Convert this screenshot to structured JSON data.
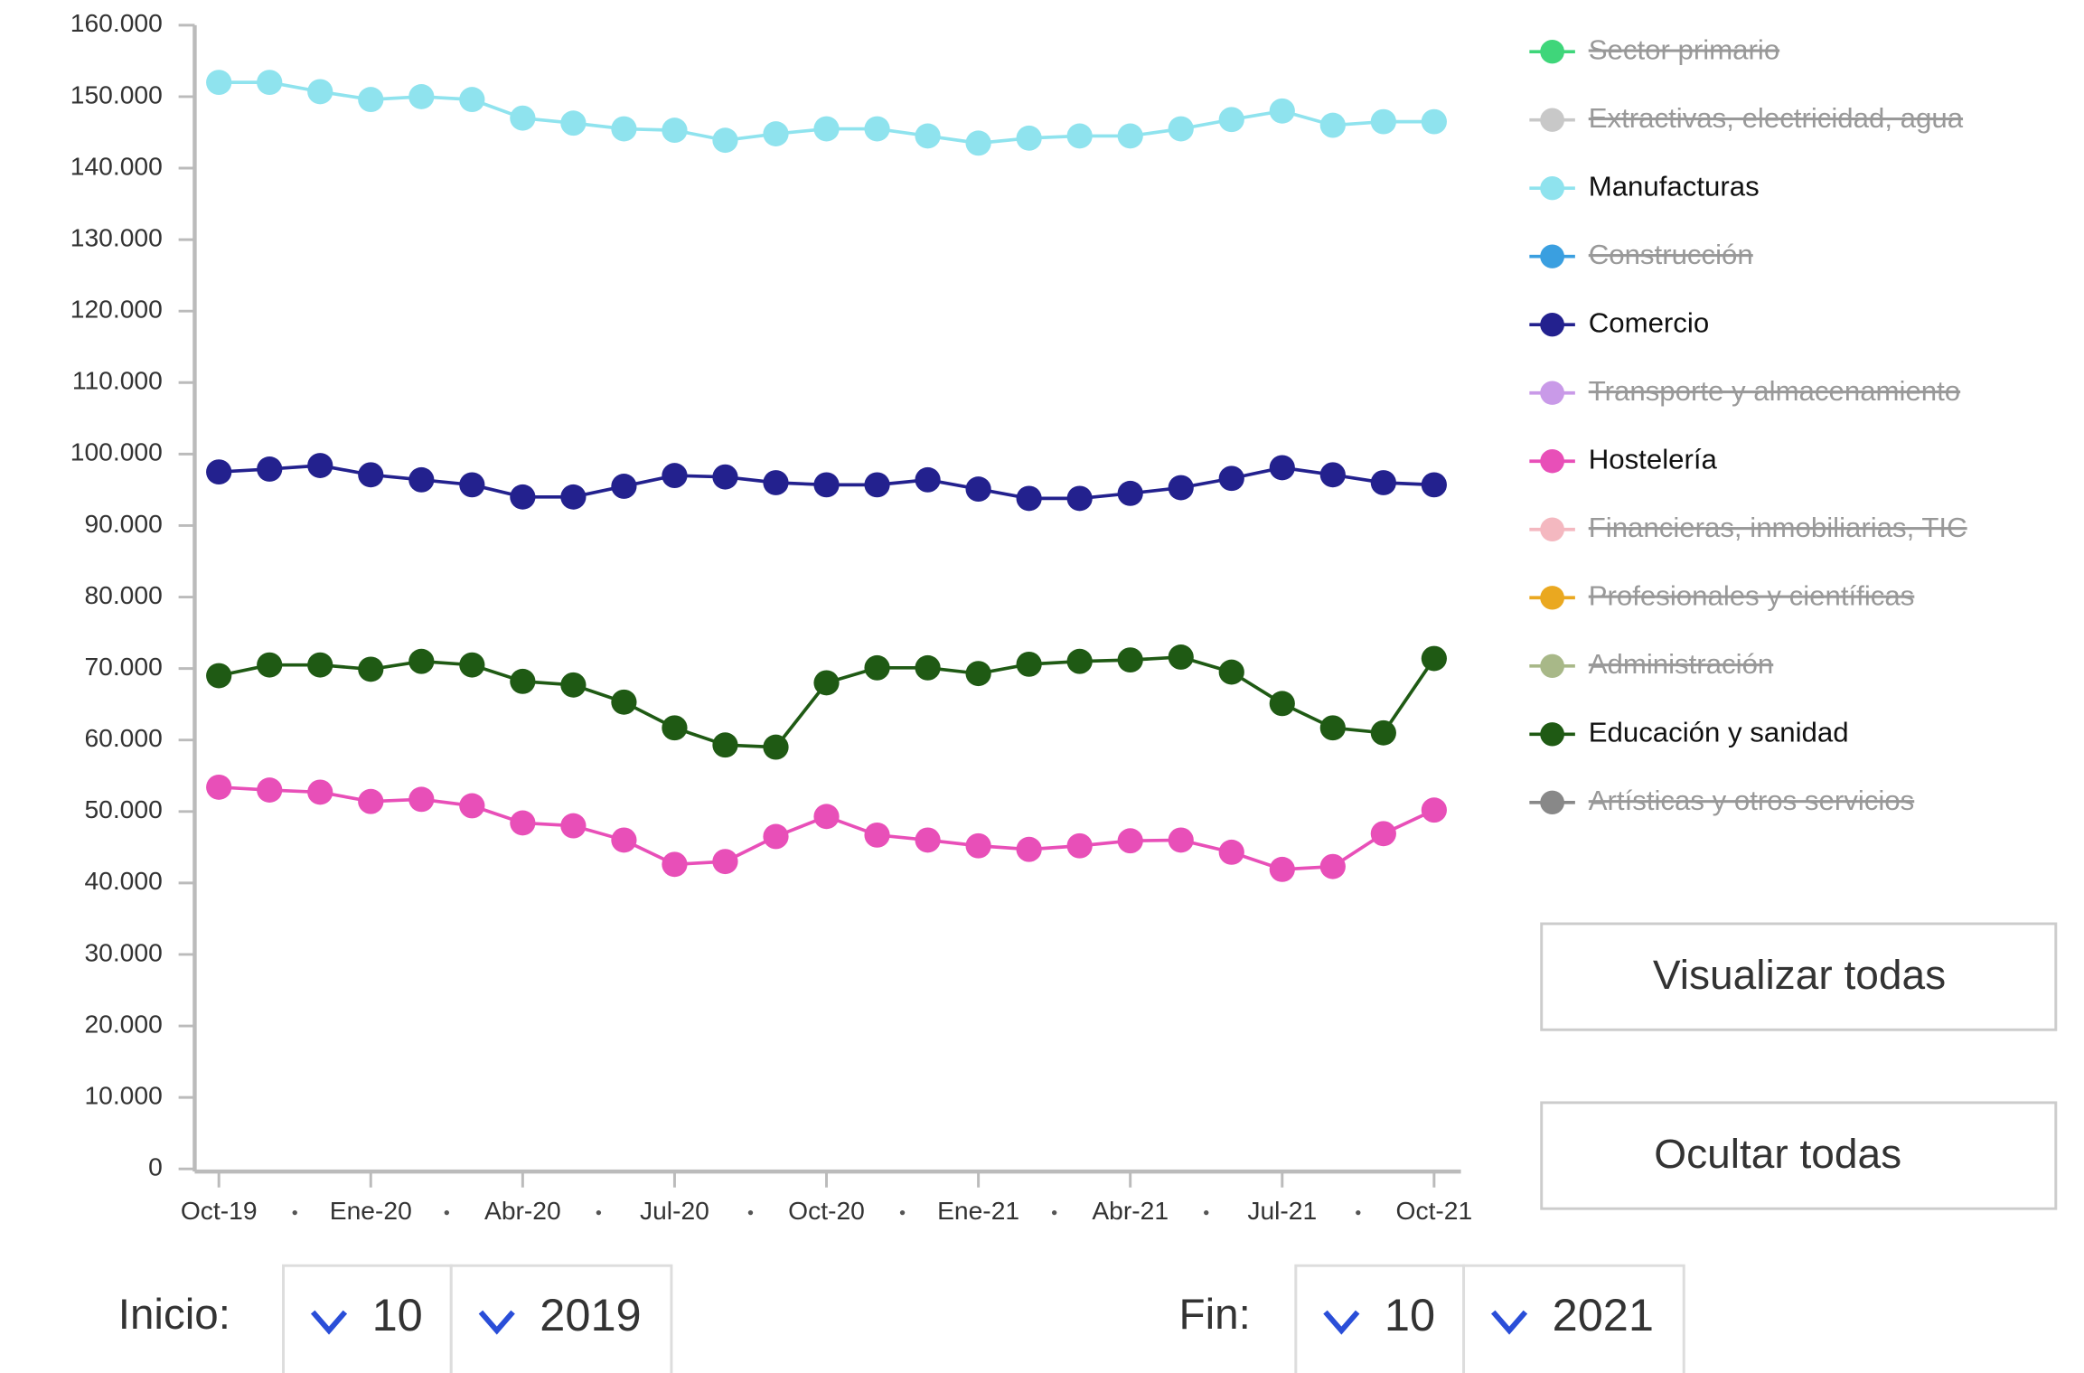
{
  "chart_data": {
    "type": "line",
    "categories": [
      "Oct-19",
      null,
      null,
      "Ene-20",
      null,
      null,
      "Abr-20",
      null,
      null,
      "Jul-20",
      null,
      null,
      "Oct-20",
      null,
      null,
      "Ene-21",
      null,
      null,
      "Abr-21",
      null,
      null,
      "Jul-21",
      null,
      null,
      "Oct-21"
    ],
    "ylim": [
      0,
      160000
    ],
    "yticks": [
      0,
      {
        "value": 10000,
        "label": "10.000"
      },
      {
        "value": 20000,
        "label": "20.000"
      },
      {
        "value": 30000,
        "label": "30.000"
      },
      {
        "value": 40000,
        "label": "40.000"
      },
      {
        "value": 50000,
        "label": "50.000"
      },
      {
        "value": 60000,
        "label": "60.000"
      },
      {
        "value": 70000,
        "label": "70.000"
      },
      {
        "value": 80000,
        "label": "80.000"
      },
      {
        "value": 90000,
        "label": "90.000"
      },
      {
        "value": 100000,
        "label": "100.000"
      },
      {
        "value": 110000,
        "label": "110.000"
      },
      {
        "value": 120000,
        "label": "120.000"
      },
      {
        "value": 130000,
        "label": "130.000"
      },
      {
        "value": 140000,
        "label": "140.000"
      },
      {
        "value": 150000,
        "label": "150.000"
      },
      {
        "value": 160000,
        "label": "160.000"
      }
    ],
    "series": [
      {
        "name": "Sector primario",
        "color": "#3fd67a",
        "visible": false
      },
      {
        "name": "Extractivas, electricidad, agua",
        "color": "#c8c8c8",
        "visible": false
      },
      {
        "name": "Manufacturas",
        "color": "#8fe3ee",
        "visible": true,
        "values": [
          152000,
          152000,
          150700,
          149600,
          150000,
          149600,
          147000,
          146300,
          145500,
          145300,
          143900,
          144800,
          145500,
          145500,
          144500,
          143500,
          144200,
          144500,
          144500,
          145500,
          146800,
          148000,
          146000,
          146500,
          146500
        ]
      },
      {
        "name": "Construcción",
        "color": "#3a9fe0",
        "visible": false
      },
      {
        "name": "Comercio",
        "color": "#23218e",
        "visible": true,
        "values": [
          97500,
          97900,
          98400,
          97100,
          96400,
          95700,
          94000,
          94000,
          95500,
          97000,
          96800,
          96000,
          95700,
          95700,
          96400,
          95100,
          93800,
          93800,
          94500,
          95300,
          96600,
          98100,
          97100,
          96000,
          95700
        ]
      },
      {
        "name": "Transporte y almacenamiento",
        "color": "#c99ae8",
        "visible": false
      },
      {
        "name": "Hostelería",
        "color": "#e84fb8",
        "visible": true,
        "values": [
          53400,
          53000,
          52700,
          51400,
          51700,
          50800,
          48400,
          48000,
          46000,
          42600,
          43000,
          46500,
          49300,
          46700,
          46000,
          45200,
          44700,
          45200,
          45900,
          46000,
          44300,
          41900,
          42300,
          46900,
          50200
        ]
      },
      {
        "name": "Financieras, inmobiliarias, TIC",
        "color": "#f4b8c0",
        "visible": false
      },
      {
        "name": "Profesionales y científicas",
        "color": "#eaa820",
        "visible": false
      },
      {
        "name": "Administración",
        "color": "#a8b888",
        "visible": false
      },
      {
        "name": "Educación y sanidad",
        "color": "#1f5a14",
        "visible": true,
        "values": [
          69000,
          70500,
          70500,
          69900,
          71000,
          70500,
          68200,
          67700,
          65300,
          61700,
          59300,
          59000,
          68000,
          70100,
          70100,
          69300,
          70600,
          71000,
          71200,
          71600,
          69500,
          65100,
          61700,
          61000,
          71400
        ]
      },
      {
        "name": "Artísticas y otros servicios",
        "color": "#888888",
        "visible": false
      }
    ]
  },
  "controls": {
    "show_all": "Visualizar todas",
    "hide_all": "Ocultar todas",
    "start_label": "Inicio:",
    "start_month": "10",
    "start_year": "2019",
    "end_label": "Fin:",
    "end_month": "10",
    "end_year": "2021"
  }
}
